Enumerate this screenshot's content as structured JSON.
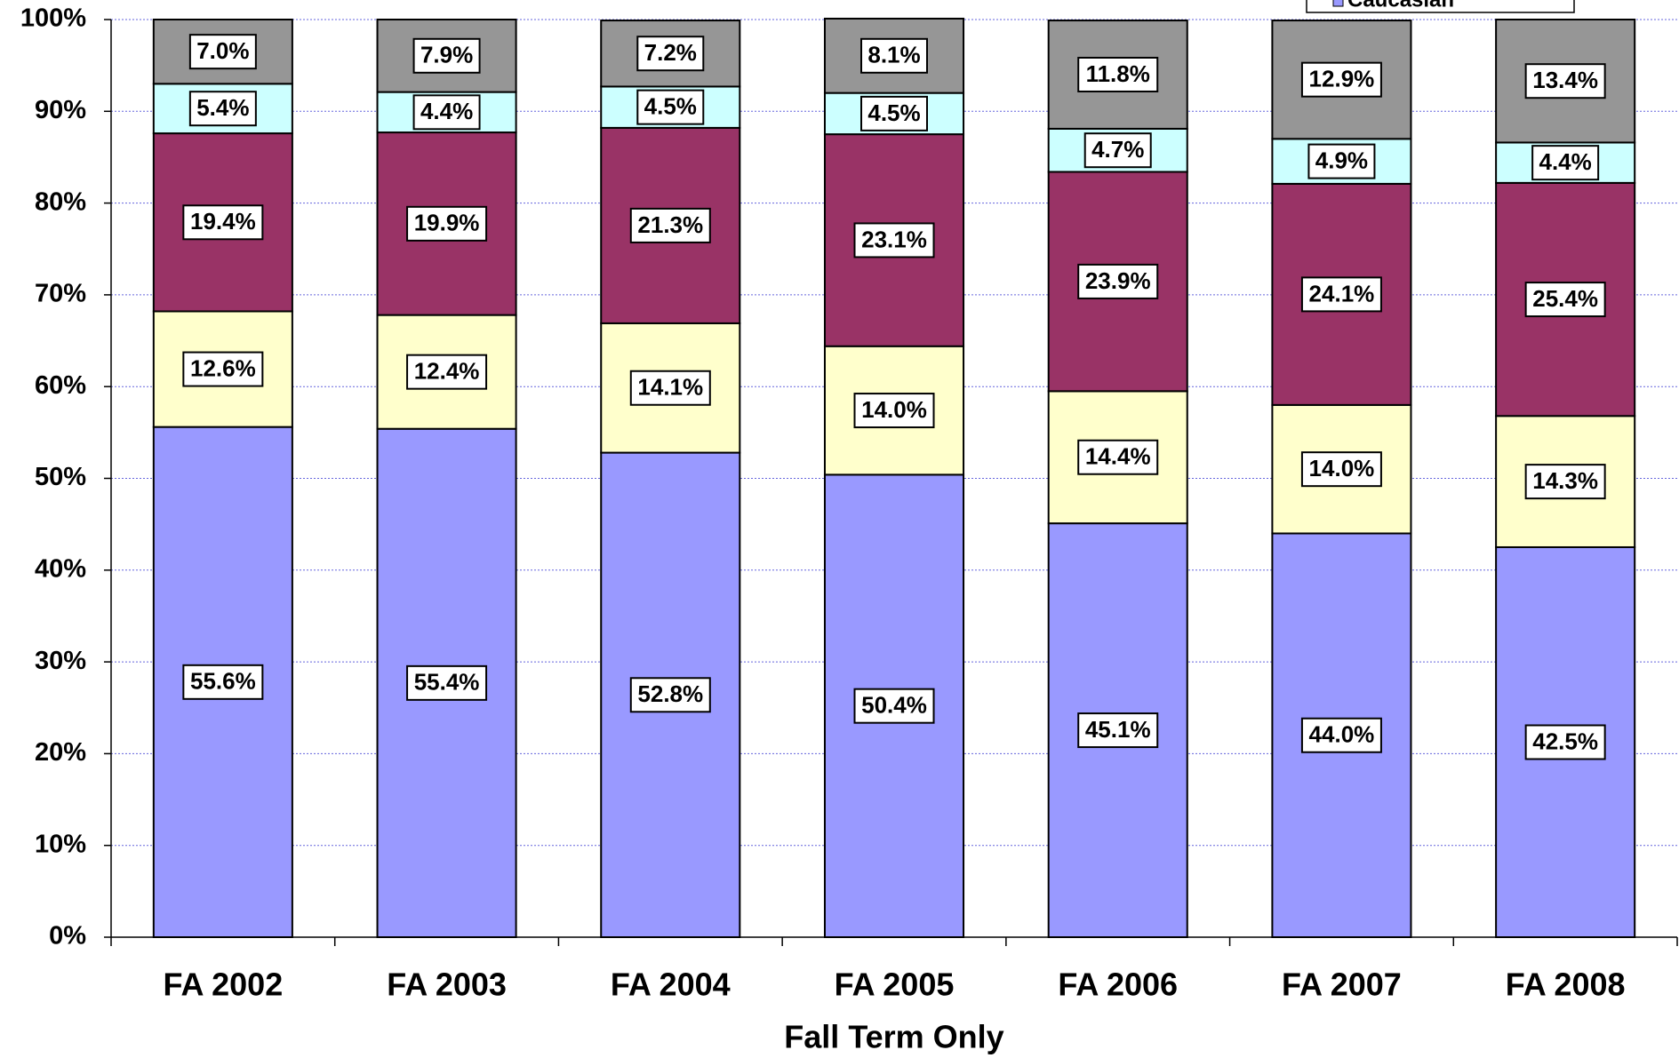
{
  "chart_data": {
    "type": "stacked_bar",
    "x_label": "Fall Term Only",
    "categories": [
      "FA 2002",
      "FA 2003",
      "FA 2004",
      "FA 2005",
      "FA 2006",
      "FA 2007",
      "FA 2008"
    ],
    "series": [
      {
        "name": "Caucasian",
        "color": "#9999ff",
        "values": [
          55.6,
          55.4,
          52.8,
          50.4,
          45.1,
          44.0,
          42.5
        ],
        "value_labels": [
          "55.6%",
          "55.4%",
          "52.8%",
          "50.4%",
          "45.1%",
          "44.0%",
          "42.5%"
        ]
      },
      {
        "color": "#ffffcc",
        "values": [
          12.6,
          12.4,
          14.1,
          14.0,
          14.4,
          14.0,
          14.3
        ],
        "value_labels": [
          "12.6%",
          "12.4%",
          "14.1%",
          "14.0%",
          "14.4%",
          "14.0%",
          "14.3%"
        ]
      },
      {
        "color": "#993366",
        "values": [
          19.4,
          19.9,
          21.3,
          23.1,
          23.9,
          24.1,
          25.4
        ],
        "value_labels": [
          "19.4%",
          "19.9%",
          "21.3%",
          "23.1%",
          "23.9%",
          "24.1%",
          "25.4%"
        ]
      },
      {
        "color": "#ccffff",
        "values": [
          5.4,
          4.4,
          4.5,
          4.5,
          4.7,
          4.9,
          4.4
        ],
        "value_labels": [
          "5.4%",
          "4.4%",
          "4.5%",
          "4.5%",
          "4.7%",
          "4.9%",
          "4.4%"
        ]
      },
      {
        "color": "#969696",
        "values": [
          7.0,
          7.9,
          7.2,
          8.1,
          11.8,
          12.9,
          13.4
        ],
        "value_labels": [
          "7.0%",
          "7.9%",
          "7.2%",
          "8.1%",
          "11.8%",
          "12.9%",
          "13.4%"
        ]
      }
    ],
    "ylim": [
      0,
      100
    ],
    "yticks": [
      {
        "value": 0,
        "label": "0%"
      },
      {
        "value": 10,
        "label": "10%"
      },
      {
        "value": 20,
        "label": "20%"
      },
      {
        "value": 30,
        "label": "30%"
      },
      {
        "value": 40,
        "label": "40%"
      },
      {
        "value": 50,
        "label": "50%"
      },
      {
        "value": 60,
        "label": "60%"
      },
      {
        "value": 70,
        "label": "70%"
      },
      {
        "value": 80,
        "label": "80%"
      },
      {
        "value": 90,
        "label": "90%"
      },
      {
        "value": 100,
        "label": "100%"
      }
    ],
    "grid": true
  }
}
